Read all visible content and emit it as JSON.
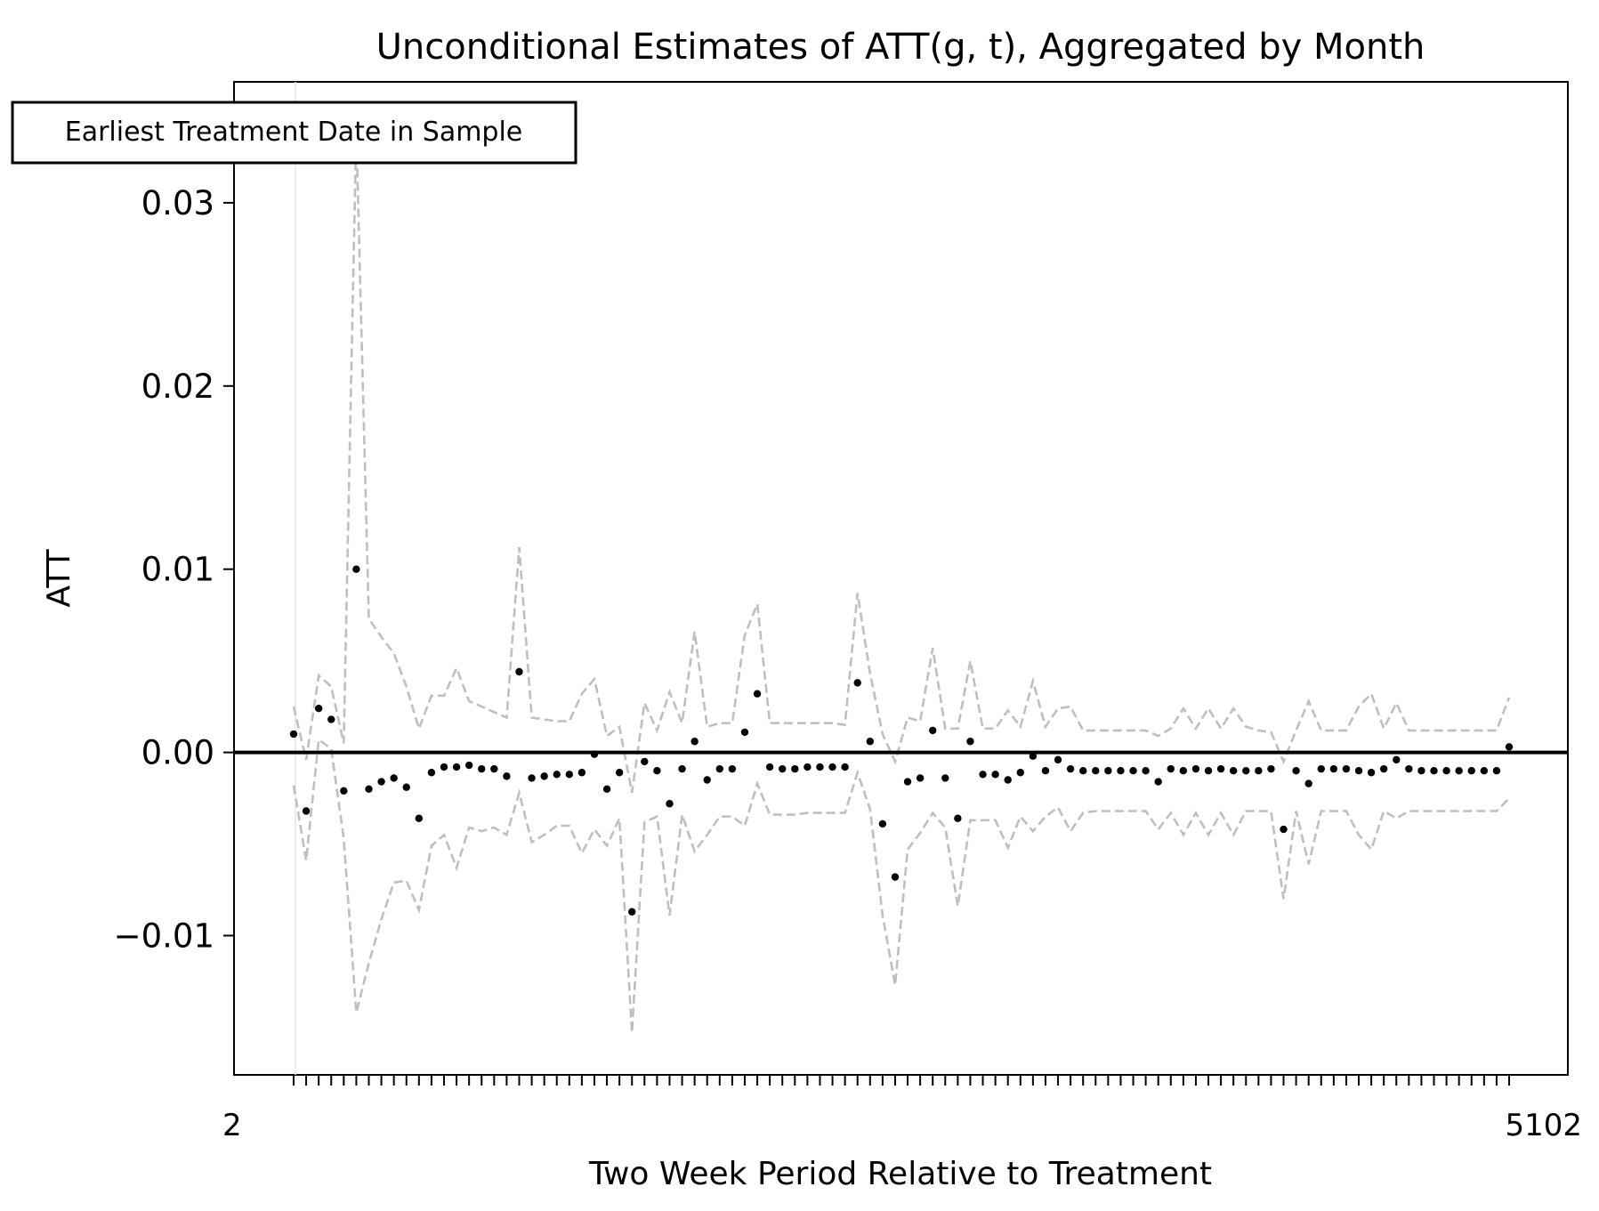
{
  "chart_data": {
    "type": "scatter",
    "title": "Unconditional Estimates of ATT(g, t), Aggregated by Month",
    "xlabel": "Two Week Period Relative to Treatment",
    "ylabel": "ATT",
    "ylim": [
      -0.0176,
      0.0366
    ],
    "yticks": [
      -0.01,
      0.0,
      0.01,
      0.02,
      0.03
    ],
    "ytick_labels": [
      "−0.01",
      "0.00",
      "0.01",
      "0.02",
      "0.03"
    ],
    "grid": false,
    "annotation": "Earliest Treatment Date in Sample",
    "x_tick_labels_note": "Tick labels along the x-axis overlap into an illegible band; only the first and last characters read as \"2\" and \"5102\".",
    "x_first_label": "2",
    "x_last_label": "5102",
    "colors": {
      "points": "#000000",
      "ci": "#bfbfbf",
      "zero_line": "#000000",
      "treatment_line": "#e6e6e6"
    },
    "series": [
      {
        "name": "",
        "values": [
          0.001,
          -0.0032,
          0.0024,
          0.0018,
          -0.0021,
          0.01,
          -0.002,
          -0.0016,
          -0.0014,
          -0.0019,
          -0.0036,
          -0.0011,
          -0.0008,
          -0.0008,
          -0.0007,
          -0.0009,
          -0.0009,
          -0.0013,
          0.0044,
          -0.0014,
          -0.0013,
          -0.0012,
          -0.0012,
          -0.0011,
          -0.0001,
          -0.002,
          -0.0011,
          -0.0087,
          -0.0005,
          -0.001,
          -0.0028,
          -0.0009,
          0.0006,
          -0.0015,
          -0.0009,
          -0.0009,
          0.0011,
          0.0032,
          -0.0008,
          -0.0009,
          -0.0009,
          -0.0008,
          -0.0008,
          -0.0008,
          -0.0008,
          0.0038,
          0.0006,
          -0.0039,
          -0.0068,
          -0.0016,
          -0.0014,
          0.0012,
          -0.0014,
          -0.0036,
          0.0006,
          -0.0012,
          -0.0012,
          -0.0015,
          -0.0011,
          -0.0002,
          -0.001,
          -0.0004,
          -0.0009,
          -0.001,
          -0.001,
          -0.001,
          -0.001,
          -0.001,
          -0.001,
          -0.0016,
          -0.0009,
          -0.001,
          -0.0009,
          -0.001,
          -0.0009,
          -0.001,
          -0.001,
          -0.001,
          -0.0009,
          -0.0042,
          -0.001,
          -0.0017,
          -0.0009,
          -0.0009,
          -0.0009,
          -0.001,
          -0.0011,
          -0.0009,
          -0.0004,
          -0.0009,
          -0.001,
          -0.001,
          -0.001,
          -0.001,
          -0.001,
          -0.001,
          -0.001,
          0.0003
        ],
        "ci_upper": [
          0.0025,
          -0.0004,
          0.0042,
          0.0036,
          0.0005,
          0.034,
          0.0073,
          0.0063,
          0.0054,
          0.0036,
          0.0013,
          0.0031,
          0.0031,
          0.0046,
          0.0028,
          0.0025,
          0.0022,
          0.0019,
          0.0112,
          0.0019,
          0.0018,
          0.0017,
          0.0017,
          0.0032,
          0.004,
          0.0009,
          0.0014,
          -0.0022,
          0.0027,
          0.0012,
          0.0033,
          0.0016,
          0.0066,
          0.0014,
          0.0016,
          0.0016,
          0.0064,
          0.0081,
          0.0016,
          0.0016,
          0.0016,
          0.0016,
          0.0016,
          0.0016,
          0.0015,
          0.0087,
          0.0043,
          0.001,
          -0.0005,
          0.0019,
          0.0017,
          0.0057,
          0.0013,
          0.0013,
          0.005,
          0.0013,
          0.0013,
          0.0023,
          0.0014,
          0.0039,
          0.0014,
          0.0024,
          0.0025,
          0.0012,
          0.0012,
          0.0012,
          0.0012,
          0.0012,
          0.0012,
          0.0009,
          0.0013,
          0.0024,
          0.0013,
          0.0024,
          0.0013,
          0.0024,
          0.0014,
          0.0012,
          0.0011,
          -0.0005,
          0.0012,
          0.0028,
          0.0012,
          0.0012,
          0.0012,
          0.0025,
          0.0032,
          0.0013,
          0.0027,
          0.0012,
          0.0012,
          0.0012,
          0.0012,
          0.0012,
          0.0012,
          0.0012,
          0.0012,
          0.003
        ],
        "ci_lower": [
          -0.0018,
          -0.0059,
          0.0007,
          0.0002,
          -0.0047,
          -0.0142,
          -0.0115,
          -0.0091,
          -0.0071,
          -0.007,
          -0.0086,
          -0.0051,
          -0.0045,
          -0.0063,
          -0.0041,
          -0.0043,
          -0.0041,
          -0.0045,
          -0.0022,
          -0.0049,
          -0.0045,
          -0.004,
          -0.004,
          -0.0055,
          -0.0042,
          -0.0051,
          -0.0036,
          -0.0153,
          -0.0038,
          -0.0035,
          -0.0089,
          -0.0034,
          -0.0054,
          -0.0045,
          -0.0035,
          -0.0035,
          -0.004,
          -0.0017,
          -0.0034,
          -0.0034,
          -0.0034,
          -0.0033,
          -0.0033,
          -0.0033,
          -0.0033,
          -0.0011,
          -0.0031,
          -0.0089,
          -0.0127,
          -0.0053,
          -0.0044,
          -0.0033,
          -0.0041,
          -0.0084,
          -0.0037,
          -0.0037,
          -0.0037,
          -0.0052,
          -0.0035,
          -0.0043,
          -0.0035,
          -0.003,
          -0.0043,
          -0.0033,
          -0.0032,
          -0.0032,
          -0.0032,
          -0.0032,
          -0.0032,
          -0.0042,
          -0.0033,
          -0.0045,
          -0.0033,
          -0.0045,
          -0.0033,
          -0.0045,
          -0.0032,
          -0.0032,
          -0.0032,
          -0.008,
          -0.0032,
          -0.0061,
          -0.0032,
          -0.0032,
          -0.0032,
          -0.0045,
          -0.0053,
          -0.0032,
          -0.0036,
          -0.0032,
          -0.0032,
          -0.0032,
          -0.0032,
          -0.0032,
          -0.0032,
          -0.0032,
          -0.0032,
          -0.0025
        ]
      }
    ]
  }
}
